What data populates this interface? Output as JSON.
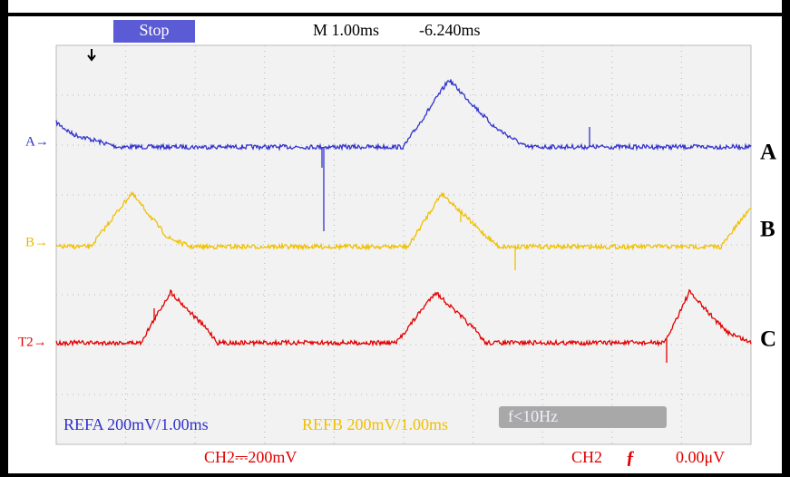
{
  "status": "Stop",
  "timebase": "M 1.00ms",
  "trigger_position": "-6.240ms",
  "channel_markers": [
    "A→",
    "B→",
    "T2→"
  ],
  "trace_labels": [
    "A",
    "B",
    "C"
  ],
  "reference_readouts": [
    "REFA 200mV/1.00ms",
    "REFB 200mV/1.00ms"
  ],
  "frequency": "f<10Hz",
  "bottom": {
    "ch2_scale": "CH2⎓200mV",
    "trigger_source": "CH2",
    "trigger_slope": "ƒ",
    "trigger_level": "0.00μV"
  }
}
